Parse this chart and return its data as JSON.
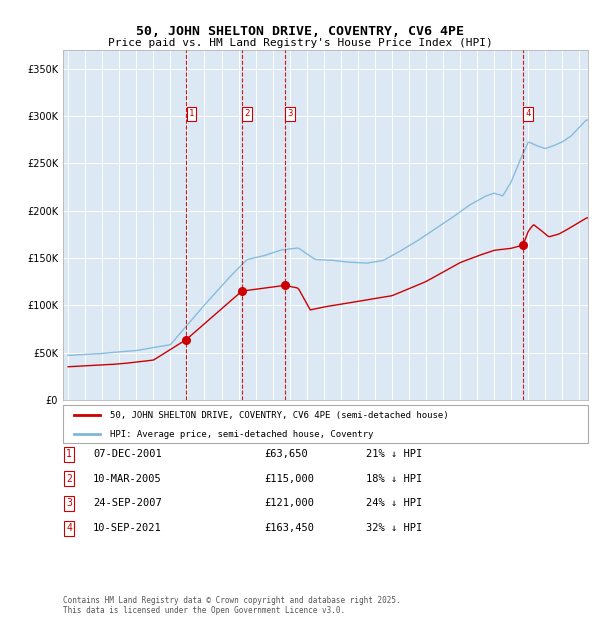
{
  "title": "50, JOHN SHELTON DRIVE, COVENTRY, CV6 4PE",
  "subtitle": "Price paid vs. HM Land Registry's House Price Index (HPI)",
  "bg_color": "#dce9f5",
  "plot_bg_color": "#dce9f5",
  "hpi_color": "#7db8d8",
  "price_color": "#cc0000",
  "ylim": [
    0,
    370000
  ],
  "yticks": [
    0,
    50000,
    100000,
    150000,
    200000,
    250000,
    300000,
    350000
  ],
  "xlim_start": 1994.7,
  "xlim_end": 2025.5,
  "sale_dates": [
    2001.93,
    2005.19,
    2007.73,
    2021.69
  ],
  "sale_prices": [
    63650,
    115000,
    121000,
    163450
  ],
  "sale_labels": [
    "1",
    "2",
    "3",
    "4"
  ],
  "vline_color": "#cc0000",
  "legend_entry1": "50, JOHN SHELTON DRIVE, COVENTRY, CV6 4PE (semi-detached house)",
  "legend_entry2": "HPI: Average price, semi-detached house, Coventry",
  "table_data": [
    [
      "1",
      "07-DEC-2001",
      "£63,650",
      "21% ↓ HPI"
    ],
    [
      "2",
      "10-MAR-2005",
      "£115,000",
      "18% ↓ HPI"
    ],
    [
      "3",
      "24-SEP-2007",
      "£121,000",
      "24% ↓ HPI"
    ],
    [
      "4",
      "10-SEP-2021",
      "£163,450",
      "32% ↓ HPI"
    ]
  ],
  "footer": "Contains HM Land Registry data © Crown copyright and database right 2025.\nThis data is licensed under the Open Government Licence v3.0."
}
